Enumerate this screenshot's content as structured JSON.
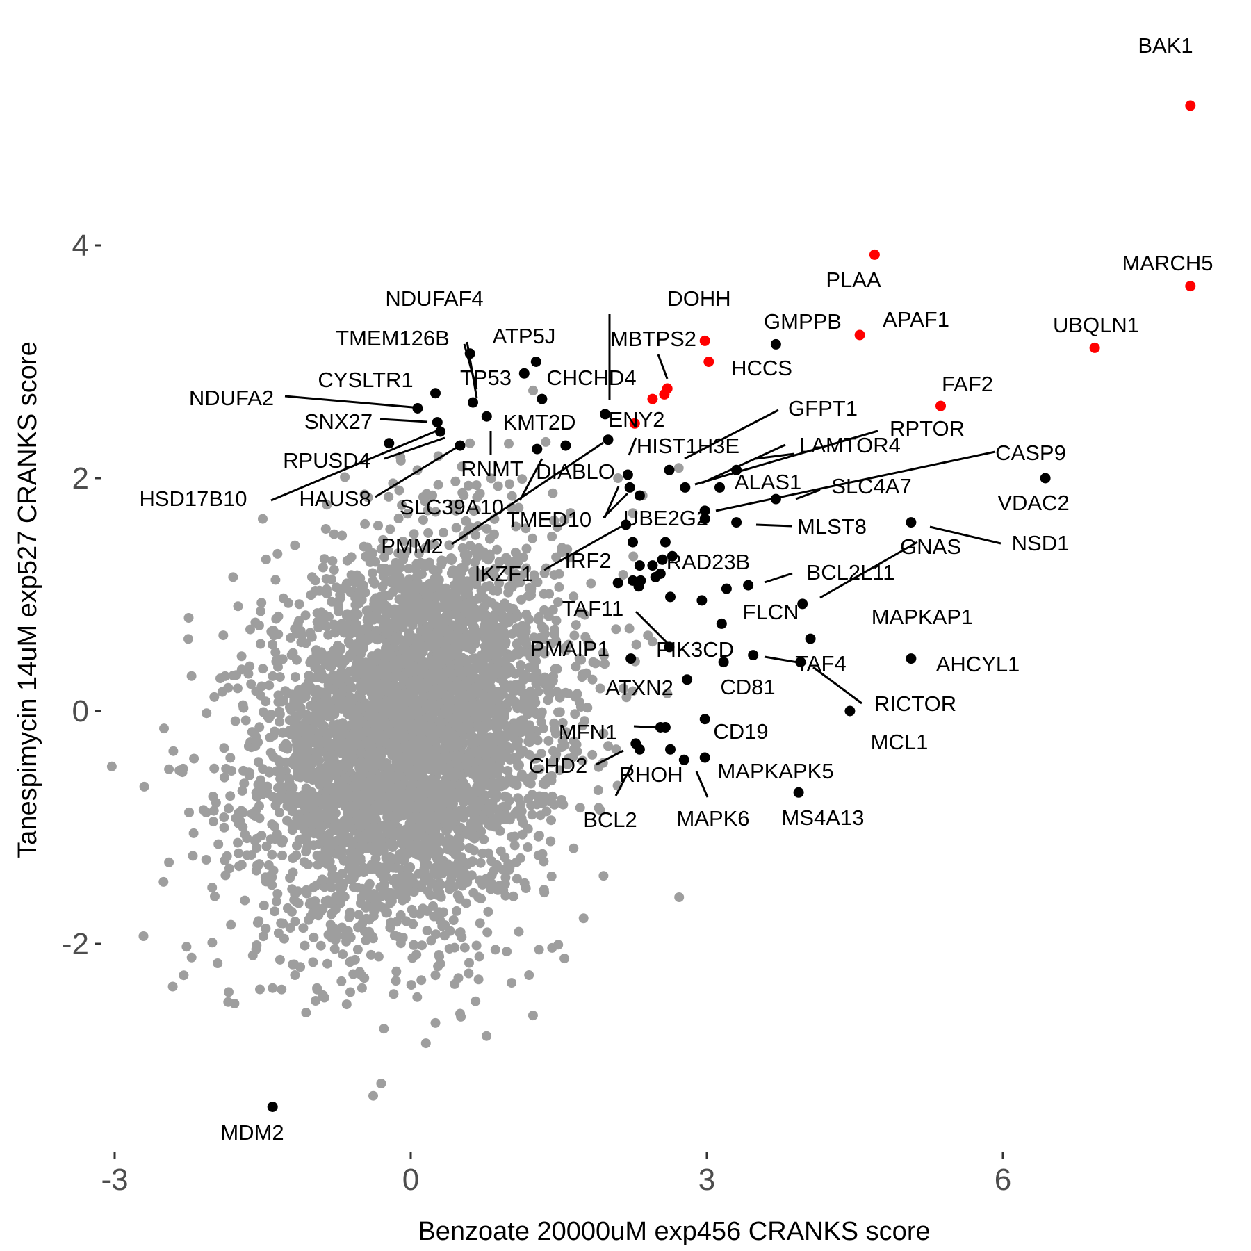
{
  "chart_data": {
    "type": "scatter",
    "xlabel": "Benzoate 20000uM exp456 CRANKS score",
    "ylabel": "Tanespimycin 14uM exp527 CRANKS score",
    "xlim": [
      -3.5,
      8.6
    ],
    "ylim": [
      -3.8,
      5.4
    ],
    "x_ticks": [
      -3,
      0,
      3,
      6
    ],
    "y_ticks": [
      -2,
      0,
      2,
      4
    ],
    "x_tick_labels": [
      "-3",
      "0",
      "3",
      "6"
    ],
    "y_tick_labels": [
      "-2",
      "0",
      "2",
      "4"
    ],
    "grid": false,
    "legend": "none",
    "colors": {
      "background": "#9e9e9e",
      "highlight": "#ff0000",
      "labeled": "#000000"
    },
    "background_cloud": {
      "note_color": "#9e9e9e",
      "center": [
        0.0,
        -0.2
      ],
      "sd": [
        0.75,
        0.8
      ],
      "correlation": 0.2,
      "n": 4500,
      "outliers": [
        [
          -2.25,
          0.8
        ],
        [
          -1.75,
          0.9
        ],
        [
          -2.7,
          -0.65
        ],
        [
          -2.45,
          -0.5
        ],
        [
          -2.5,
          -0.15
        ],
        [
          -2.1,
          -0.85
        ],
        [
          -2.45,
          -1.3
        ],
        [
          -2.2,
          -1.05
        ],
        [
          -2.3,
          -2.27
        ],
        [
          -1.85,
          -2.5
        ],
        [
          -1.6,
          -2.1
        ],
        [
          -1.55,
          -1.82
        ],
        [
          -1.4,
          -2.38
        ],
        [
          -1.35,
          -1.57
        ],
        [
          -0.95,
          -2.38
        ],
        [
          -0.5,
          -2.27
        ],
        [
          0.25,
          -2.27
        ],
        [
          0.25,
          -2.68
        ],
        [
          0.5,
          -2.6
        ],
        [
          -0.3,
          -3.2
        ],
        [
          2.72,
          -1.6
        ],
        [
          1.65,
          -1.18
        ],
        [
          1.6,
          0.57
        ],
        [
          1.95,
          0.5
        ],
        [
          2.0,
          -0.3
        ],
        [
          -1.5,
          1.65
        ],
        [
          -1.8,
          1.15
        ],
        [
          -0.1,
          2.15
        ],
        [
          0.6,
          2.3
        ],
        [
          2.1,
          2.0
        ],
        [
          2.25,
          1.7
        ],
        [
          2.35,
          1.85
        ],
        [
          1.0,
          1.95
        ],
        [
          -1.35,
          1.35
        ],
        [
          -1.7,
          0.05
        ],
        [
          0.9,
          -1.5
        ],
        [
          -0.8,
          -1.95
        ],
        [
          1.3,
          -2.05
        ],
        [
          -2.0,
          -0.95
        ],
        [
          2.6,
          0.15
        ]
      ]
    },
    "points": [
      {
        "label": "BAK1",
        "x": 7.9,
        "y": 5.2,
        "color": "red"
      },
      {
        "label": "MARCH5",
        "x": 7.9,
        "y": 3.65,
        "color": "red"
      },
      {
        "label": "UBQLN1",
        "x": 6.93,
        "y": 3.12,
        "color": "red"
      },
      {
        "label": "PLAA",
        "x": 4.7,
        "y": 3.92,
        "color": "red"
      },
      {
        "label": "APAF1",
        "x": 4.55,
        "y": 3.23,
        "color": "red"
      },
      {
        "label": "FAF2",
        "x": 5.37,
        "y": 2.62,
        "color": "red"
      },
      {
        "label": "DOHH",
        "x": 2.98,
        "y": 3.18,
        "color": "red"
      },
      {
        "label": "HCCS",
        "x": 3.02,
        "y": 3.0,
        "color": "red"
      },
      {
        "label": "MBTPS2",
        "x": 2.6,
        "y": 2.77,
        "color": "red"
      },
      {
        "label": "",
        "x": 2.57,
        "y": 2.72,
        "color": "red"
      },
      {
        "label": "",
        "x": 2.45,
        "y": 2.68,
        "color": "red"
      },
      {
        "label": "",
        "x": 2.27,
        "y": 2.47,
        "color": "red"
      },
      {
        "label": "GMPPB",
        "x": 3.7,
        "y": 3.15,
        "color": "black"
      },
      {
        "label": "VDAC2",
        "x": 6.43,
        "y": 2.0,
        "color": "black"
      },
      {
        "label": "NSD1",
        "x": 5.07,
        "y": 1.62,
        "color": "black"
      },
      {
        "label": "AHCYL1",
        "x": 5.07,
        "y": 0.45,
        "color": "black"
      },
      {
        "label": "MCL1",
        "x": 4.45,
        "y": 0.0,
        "color": "black"
      },
      {
        "label": "RICTOR",
        "x": 3.95,
        "y": 0.42,
        "color": "black"
      },
      {
        "label": "MS4A13",
        "x": 3.93,
        "y": -0.7,
        "color": "black"
      },
      {
        "label": "GNAS",
        "x": 3.97,
        "y": 0.92,
        "color": "black"
      },
      {
        "label": "MAPKAP1",
        "x": 4.05,
        "y": 0.62,
        "color": "black"
      },
      {
        "label": "TAF4",
        "x": 3.47,
        "y": 0.48,
        "color": "black"
      },
      {
        "label": "MLST8",
        "x": 3.3,
        "y": 1.62,
        "color": "black"
      },
      {
        "label": "SLC4A7",
        "x": 3.7,
        "y": 1.82,
        "color": "black"
      },
      {
        "label": "RPTOR",
        "x": 2.78,
        "y": 1.92,
        "color": "black"
      },
      {
        "label": "CASP9",
        "x": 2.98,
        "y": 1.72,
        "color": "black"
      },
      {
        "label": "",
        "x": 2.98,
        "y": 1.65,
        "color": "black"
      },
      {
        "label": "GFPT1",
        "x": 2.62,
        "y": 2.07,
        "color": "black"
      },
      {
        "label": "LAMTOR4",
        "x": 3.3,
        "y": 2.07,
        "color": "black"
      },
      {
        "label": "ALAS1",
        "x": 3.13,
        "y": 1.92,
        "color": "black"
      },
      {
        "label": "BCL2L11",
        "x": 3.42,
        "y": 1.08,
        "color": "black"
      },
      {
        "label": "",
        "x": 3.2,
        "y": 1.05,
        "color": "black"
      },
      {
        "label": "FLCN",
        "x": 3.15,
        "y": 0.75,
        "color": "black"
      },
      {
        "label": "",
        "x": 2.95,
        "y": 0.95,
        "color": "black"
      },
      {
        "label": "CD81",
        "x": 3.17,
        "y": 0.42,
        "color": "black"
      },
      {
        "label": "CD19",
        "x": 2.98,
        "y": -0.07,
        "color": "black"
      },
      {
        "label": "ATXN2",
        "x": 2.8,
        "y": 0.27,
        "color": "black"
      },
      {
        "label": "PIK3CD",
        "x": 2.62,
        "y": 0.55,
        "color": "black"
      },
      {
        "label": "PMAIP1",
        "x": 2.23,
        "y": 0.45,
        "color": "black"
      },
      {
        "label": "TAF11",
        "x": 2.1,
        "y": 1.1,
        "color": "black"
      },
      {
        "label": "RAD23B",
        "x": 2.65,
        "y": 1.33,
        "color": "black"
      },
      {
        "label": "",
        "x": 2.58,
        "y": 1.45,
        "color": "black"
      },
      {
        "label": "",
        "x": 2.55,
        "y": 1.3,
        "color": "black"
      },
      {
        "label": "",
        "x": 2.45,
        "y": 1.25,
        "color": "black"
      },
      {
        "label": "",
        "x": 2.32,
        "y": 1.25,
        "color": "black"
      },
      {
        "label": "",
        "x": 2.25,
        "y": 1.12,
        "color": "black"
      },
      {
        "label": "",
        "x": 2.33,
        "y": 1.12,
        "color": "black"
      },
      {
        "label": "",
        "x": 2.48,
        "y": 1.15,
        "color": "black"
      },
      {
        "label": "",
        "x": 2.53,
        "y": 1.18,
        "color": "black"
      },
      {
        "label": "",
        "x": 2.31,
        "y": 1.07,
        "color": "black"
      },
      {
        "label": "",
        "x": 2.25,
        "y": 1.45,
        "color": "black"
      },
      {
        "label": "",
        "x": 2.63,
        "y": 0.98,
        "color": "black"
      },
      {
        "label": "IRF2",
        "x": 2.18,
        "y": 1.6,
        "color": "black"
      },
      {
        "label": "UBE2G2",
        "x": 2.32,
        "y": 1.85,
        "color": "black"
      },
      {
        "label": "",
        "x": 2.22,
        "y": 1.92,
        "color": "black"
      },
      {
        "label": "TMED10",
        "x": 2.2,
        "y": 2.03,
        "color": "black"
      },
      {
        "label": "ENY2",
        "x": 1.97,
        "y": 2.55,
        "color": "black"
      },
      {
        "label": "HIST1H3E",
        "x": 2.0,
        "y": 2.33,
        "color": "black"
      },
      {
        "label": "DIABLO",
        "x": 1.57,
        "y": 2.28,
        "color": "black"
      },
      {
        "label": "PMM2",
        "x": 1.28,
        "y": 2.25,
        "color": "black"
      },
      {
        "label": "CHCHD4",
        "x": 1.33,
        "y": 2.68,
        "color": "black"
      },
      {
        "label": "ATP5J",
        "x": 1.27,
        "y": 3.0,
        "color": "black"
      },
      {
        "label": "TP53",
        "x": 1.15,
        "y": 2.9,
        "color": "black"
      },
      {
        "label": "NDUFAF4",
        "x": 0.6,
        "y": 3.07,
        "color": "black"
      },
      {
        "label": "TMEM126B",
        "x": 0.63,
        "y": 2.65,
        "color": "black"
      },
      {
        "label": "KMT2D",
        "x": 0.77,
        "y": 2.53,
        "color": "black"
      },
      {
        "label": "CYSLTR1",
        "x": 0.25,
        "y": 2.73,
        "color": "black"
      },
      {
        "label": "NDUFA2",
        "x": 0.07,
        "y": 2.6,
        "color": "black"
      },
      {
        "label": "SNX27",
        "x": 0.27,
        "y": 2.48,
        "color": "black"
      },
      {
        "label": "HSD17B10",
        "x": 0.3,
        "y": 2.4,
        "color": "black"
      },
      {
        "label": "RPUSD4",
        "x": -0.22,
        "y": 2.3,
        "color": "black"
      },
      {
        "label": "HAUS8",
        "x": 0.5,
        "y": 2.28,
        "color": "black"
      },
      {
        "label": "MFN1",
        "x": 2.58,
        "y": -0.14,
        "color": "black"
      },
      {
        "label": "",
        "x": 2.53,
        "y": -0.14,
        "color": "black"
      },
      {
        "label": "MAPKAPK5",
        "x": 2.98,
        "y": -0.4,
        "color": "black"
      },
      {
        "label": "MAPK6",
        "x": 2.77,
        "y": -0.42,
        "color": "black"
      },
      {
        "label": "RHOH",
        "x": 2.63,
        "y": -0.33,
        "color": "black"
      },
      {
        "label": "CHD2",
        "x": 2.28,
        "y": -0.28,
        "color": "black"
      },
      {
        "label": "BCL2",
        "x": 2.32,
        "y": -0.33,
        "color": "black"
      },
      {
        "label": "MDM2",
        "x": -1.4,
        "y": -3.4,
        "color": "black"
      }
    ],
    "labels": [
      {
        "text": "BAK1",
        "x": 7.9,
        "y": 5.2
      },
      {
        "text": "MARCH5",
        "x": 7.9,
        "y": 3.65
      },
      {
        "text": "UBQLN1",
        "x": 6.93,
        "y": 3.12
      },
      {
        "text": "PLAA",
        "x": 4.7,
        "y": 3.92
      },
      {
        "text": "APAF1",
        "x": 4.55,
        "y": 3.23
      },
      {
        "text": "FAF2",
        "x": 5.37,
        "y": 2.62
      },
      {
        "text": "DOHH",
        "x": 2.98,
        "y": 3.18
      },
      {
        "text": "HCCS",
        "x": 3.02,
        "y": 3.0
      },
      {
        "text": "MBTPS2",
        "x": 2.6,
        "y": 2.77
      },
      {
        "text": "GMPPB",
        "x": 3.7,
        "y": 3.15
      },
      {
        "text": "VDAC2",
        "x": 6.43,
        "y": 2.0
      },
      {
        "text": "NSD1",
        "x": 5.07,
        "y": 1.62
      },
      {
        "text": "AHCYL1",
        "x": 5.07,
        "y": 0.45
      },
      {
        "text": "MCL1",
        "x": 4.45,
        "y": 0.0
      },
      {
        "text": "RICTOR",
        "x": 3.95,
        "y": 0.42
      },
      {
        "text": "MS4A13",
        "x": 3.93,
        "y": -0.7
      },
      {
        "text": "GNAS",
        "x": 3.97,
        "y": 0.92
      },
      {
        "text": "MAPKAP1",
        "x": 4.05,
        "y": 0.62
      },
      {
        "text": "TAF4",
        "x": 3.47,
        "y": 0.48
      },
      {
        "text": "MLST8",
        "x": 3.3,
        "y": 1.62
      },
      {
        "text": "SLC4A7",
        "x": 3.7,
        "y": 1.82
      },
      {
        "text": "RPTOR",
        "x": 2.78,
        "y": 1.92
      },
      {
        "text": "CASP9",
        "x": 2.98,
        "y": 1.72
      },
      {
        "text": "GFPT1",
        "x": 2.62,
        "y": 2.07
      },
      {
        "text": "LAMTOR4",
        "x": 3.3,
        "y": 2.07
      },
      {
        "text": "ALAS1",
        "x": 3.13,
        "y": 1.92
      },
      {
        "text": "BCL2L11",
        "x": 3.42,
        "y": 1.08
      },
      {
        "text": "FLCN",
        "x": 3.15,
        "y": 0.75
      },
      {
        "text": "CD81",
        "x": 3.17,
        "y": 0.42
      },
      {
        "text": "CD19",
        "x": 2.98,
        "y": -0.07
      },
      {
        "text": "ATXN2",
        "x": 2.8,
        "y": 0.27
      },
      {
        "text": "PIK3CD",
        "x": 2.62,
        "y": 0.55
      },
      {
        "text": "PMAIP1",
        "x": 2.23,
        "y": 0.45
      },
      {
        "text": "TAF11",
        "x": 2.1,
        "y": 1.1
      },
      {
        "text": "RAD23B",
        "x": 2.65,
        "y": 1.33
      },
      {
        "text": "IRF2",
        "x": 2.18,
        "y": 1.6
      },
      {
        "text": "UBE2G2",
        "x": 2.32,
        "y": 1.85
      },
      {
        "text": "TMED10",
        "x": 2.2,
        "y": 2.03
      },
      {
        "text": "ENY2",
        "x": 1.97,
        "y": 2.55
      },
      {
        "text": "HIST1H3E",
        "x": 2.0,
        "y": 2.33
      },
      {
        "text": "DIABLO",
        "x": 1.57,
        "y": 2.28
      },
      {
        "text": "PMM2",
        "x": 1.28,
        "y": 2.25
      },
      {
        "text": "CHCHD4",
        "x": 1.33,
        "y": 2.68
      },
      {
        "text": "ATP5J",
        "x": 1.27,
        "y": 3.0
      },
      {
        "text": "TP53",
        "x": 1.15,
        "y": 2.9
      },
      {
        "text": "NDUFAF4",
        "x": 0.6,
        "y": 3.07
      },
      {
        "text": "TMEM126B",
        "x": 0.63,
        "y": 2.65
      },
      {
        "text": "KMT2D",
        "x": 0.77,
        "y": 2.53
      },
      {
        "text": "CYSLTR1",
        "x": 0.25,
        "y": 2.73
      },
      {
        "text": "NDUFA2",
        "x": 0.07,
        "y": 2.6
      },
      {
        "text": "SNX27",
        "x": 0.27,
        "y": 2.48
      },
      {
        "text": "HSD17B10",
        "x": 0.3,
        "y": 2.4
      },
      {
        "text": "RPUSD4",
        "x": -0.22,
        "y": 2.3
      },
      {
        "text": "HAUS8",
        "x": 0.5,
        "y": 2.28
      },
      {
        "text": "MFN1",
        "x": 2.58,
        "y": -0.14
      },
      {
        "text": "MAPKAPK5",
        "x": 2.98,
        "y": -0.4
      },
      {
        "text": "MAPK6",
        "x": 2.77,
        "y": -0.42
      },
      {
        "text": "RHOH",
        "x": 2.63,
        "y": -0.33
      },
      {
        "text": "CHD2",
        "x": 2.28,
        "y": -0.28
      },
      {
        "text": "BCL2",
        "x": 2.32,
        "y": -0.33
      },
      {
        "text": "MDM2",
        "x": -1.4,
        "y": -3.4
      },
      {
        "text": "RNMT",
        "x": 1.0,
        "y": 2.3
      },
      {
        "text": "SLC39A10",
        "x": 1.1,
        "y": 2.2
      },
      {
        "text": "IKZF1",
        "x": 2.1,
        "y": 1.28
      }
    ]
  }
}
